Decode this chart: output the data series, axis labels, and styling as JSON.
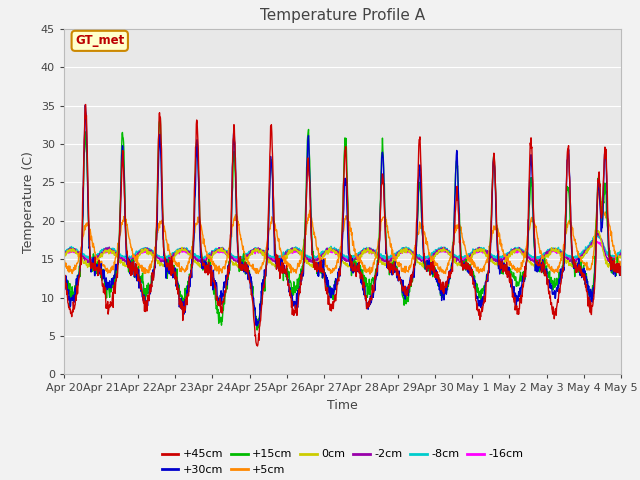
{
  "title": "Temperature Profile A",
  "xlabel": "Time",
  "ylabel": "Temperature (C)",
  "ylim": [
    0,
    45
  ],
  "yticks": [
    0,
    5,
    10,
    15,
    20,
    25,
    30,
    35,
    40,
    45
  ],
  "annotation": "GT_met",
  "series_labels": [
    "+45cm",
    "+30cm",
    "+15cm",
    "+5cm",
    "0cm",
    "-2cm",
    "-8cm",
    "-16cm"
  ],
  "series_colors": [
    "#cc0000",
    "#0000cc",
    "#00bb00",
    "#ff8800",
    "#cccc00",
    "#9900aa",
    "#00cccc",
    "#ff00ff"
  ],
  "bg_color": "#e8e8e8",
  "fig_bg_color": "#f2f2f2",
  "x_tick_labels": [
    "Apr 20",
    "Apr 21",
    "Apr 22",
    "Apr 23",
    "Apr 24",
    "Apr 25",
    "Apr 26",
    "Apr 27",
    "Apr 28",
    "Apr 29",
    "Apr 30",
    "May 1",
    "May 2",
    "May 3",
    "May 4",
    "May 5"
  ],
  "n_points": 1440,
  "seed": 7
}
